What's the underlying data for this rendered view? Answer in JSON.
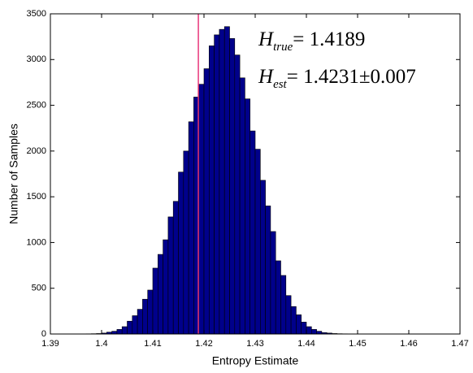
{
  "chart_data": {
    "type": "histogram",
    "x_label": "Entropy Estimate",
    "y_label": "Number of Samples",
    "color": "#00008b",
    "edge_color": "#000000",
    "bins": [
      1.396,
      1.397,
      1.398,
      1.399,
      1.4,
      1.401,
      1.402,
      1.403,
      1.404,
      1.405,
      1.406,
      1.407,
      1.408,
      1.409,
      1.41,
      1.411,
      1.412,
      1.413,
      1.414,
      1.415,
      1.416,
      1.417,
      1.418,
      1.419,
      1.42,
      1.421,
      1.422,
      1.423,
      1.424,
      1.425,
      1.426,
      1.427,
      1.428,
      1.429,
      1.43,
      1.431,
      1.432,
      1.433,
      1.434,
      1.435,
      1.436,
      1.437,
      1.438,
      1.439,
      1.44,
      1.441,
      1.442,
      1.443,
      1.444,
      1.445,
      1.446,
      1.447,
      1.448
    ],
    "counts": [
      1,
      2,
      3,
      5,
      10,
      20,
      30,
      50,
      80,
      140,
      200,
      270,
      380,
      480,
      720,
      870,
      1030,
      1280,
      1450,
      1770,
      2000,
      2320,
      2590,
      2730,
      2900,
      3150,
      3270,
      3330,
      3360,
      3230,
      3050,
      2800,
      2570,
      2220,
      2020,
      1680,
      1400,
      1120,
      800,
      640,
      420,
      300,
      210,
      130,
      80,
      50,
      30,
      15,
      10,
      5,
      3,
      2
    ],
    "xlim": [
      1.39,
      1.47
    ],
    "xticks": [
      1.39,
      1.4,
      1.41,
      1.42,
      1.43,
      1.44,
      1.45,
      1.46,
      1.47
    ],
    "ylim": [
      0,
      3500
    ],
    "yticks": [
      0,
      500,
      1000,
      1500,
      2000,
      2500,
      3000,
      3500
    ],
    "vline": {
      "x": 1.4189,
      "color": "#e8357a"
    },
    "annotations": [
      {
        "symbol": "H",
        "subscript": "true",
        "text": "= 1.4189"
      },
      {
        "symbol": "H",
        "subscript": "est",
        "text": "= 1.4231±0.007"
      }
    ]
  }
}
